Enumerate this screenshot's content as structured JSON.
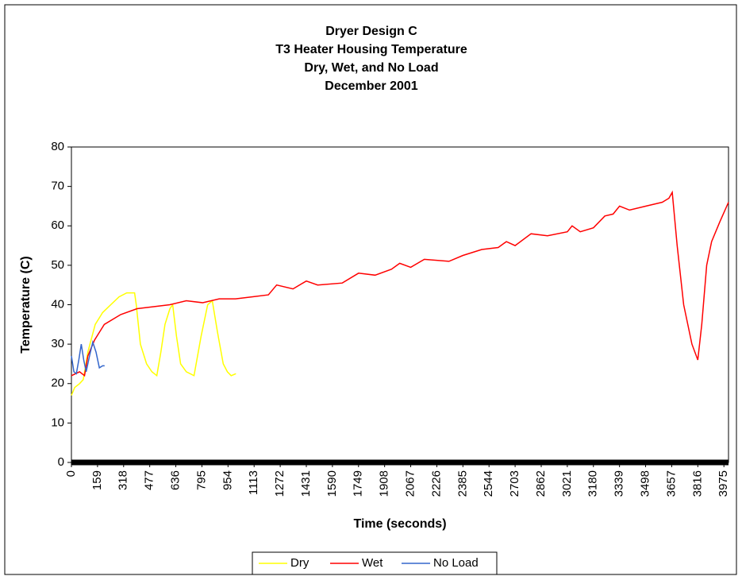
{
  "chart_data": {
    "type": "line",
    "title": [
      "Dryer Design C",
      "T3 Heater Housing Temperature",
      "Dry, Wet, and No Load",
      "December 2001"
    ],
    "x_label": "Time (seconds)",
    "y_label": "Temperature (C)",
    "xlim": [
      0,
      4003
    ],
    "ylim": [
      0,
      80
    ],
    "xticks": [
      0,
      159,
      318,
      477,
      636,
      795,
      954,
      1113,
      1272,
      1431,
      1590,
      1749,
      1908,
      2067,
      2226,
      2385,
      2544,
      2703,
      2862,
      3021,
      3180,
      3339,
      3498,
      3657,
      3816,
      3975
    ],
    "yticks": [
      0,
      10,
      20,
      30,
      40,
      50,
      60,
      70,
      80
    ],
    "grid": false,
    "legend": "bottom",
    "series": [
      {
        "name": "Dry",
        "color": "#ffff00",
        "x": [
          0,
          20,
          50,
          72,
          100,
          145,
          190,
          240,
          290,
          337,
          385,
          395,
          420,
          458,
          490,
          520,
          545,
          570,
          600,
          617,
          640,
          665,
          700,
          747,
          790,
          830,
          858,
          890,
          925,
          950,
          973,
          1002
        ],
        "values": [
          17,
          19,
          20,
          21,
          28,
          35,
          38,
          40,
          42,
          43,
          43,
          40,
          30,
          25,
          23,
          22,
          28,
          35,
          39,
          40,
          32,
          25,
          23,
          22,
          32,
          40,
          41,
          33,
          25,
          23,
          22,
          22.5
        ]
      },
      {
        "name": "Wet",
        "color": "#ff0000",
        "x": [
          0,
          50,
          80,
          100,
          140,
          200,
          300,
          400,
          500,
          600,
          700,
          800,
          900,
          1000,
          1100,
          1200,
          1250,
          1350,
          1431,
          1500,
          1650,
          1749,
          1850,
          1950,
          2000,
          2067,
          2150,
          2300,
          2385,
          2500,
          2600,
          2650,
          2703,
          2800,
          2900,
          3021,
          3050,
          3100,
          3180,
          3250,
          3300,
          3339,
          3400,
          3500,
          3600,
          3640,
          3660,
          3690,
          3730,
          3780,
          3816,
          3840,
          3870,
          3900,
          3950,
          4003
        ],
        "values": [
          22,
          23,
          22,
          27,
          31,
          35,
          37.5,
          39,
          39.5,
          40,
          41,
          40.5,
          41.5,
          41.5,
          42,
          42.5,
          45,
          44,
          46,
          45,
          45.5,
          48,
          47.5,
          49,
          50.5,
          49.5,
          51.5,
          51,
          52.5,
          54,
          54.5,
          56,
          55,
          58,
          57.5,
          58.5,
          60,
          58.5,
          59.5,
          62.5,
          63,
          65,
          64,
          65,
          66,
          67,
          68.5,
          55,
          40,
          30,
          26,
          35,
          50,
          56,
          61,
          66
        ]
      },
      {
        "name": "No Load",
        "color": "#3366cc",
        "x": [
          0,
          15,
          30,
          45,
          60,
          75,
          90,
          110,
          130,
          150,
          170,
          190,
          202
        ],
        "values": [
          27,
          23,
          22.5,
          26,
          30,
          26,
          23,
          27,
          30.5,
          28,
          24,
          24.5,
          24.5
        ]
      }
    ]
  }
}
